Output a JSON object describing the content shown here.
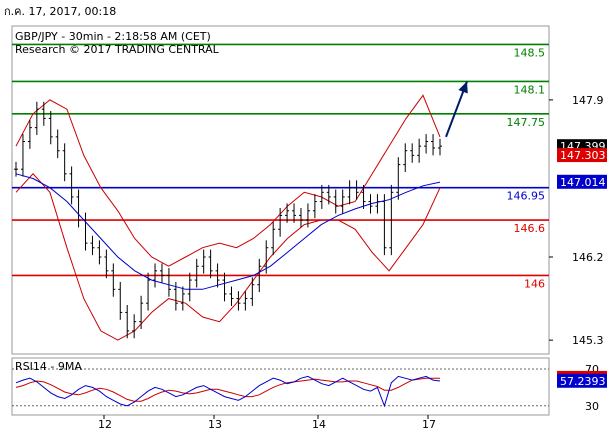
{
  "header": {
    "date": "ก.ค. 17, 2017, 00:18"
  },
  "chart_data": {
    "type": "candlestick",
    "title": "GBP/JPY - 30min - 2:18:58 AM (CET)",
    "subtitle": "Research © 2017 TRADING CENTRAL",
    "ylim": [
      145.15,
      148.7
    ],
    "y_ticks": [
      {
        "value": 147.9,
        "label": "147.9"
      },
      {
        "value": 146.2,
        "label": "146.2"
      },
      {
        "value": 145.3,
        "label": "145.3"
      }
    ],
    "x_labels": [
      "12",
      "13",
      "14",
      "17"
    ],
    "levels": [
      {
        "value": 148.5,
        "label": "148.5",
        "color": "#008000"
      },
      {
        "value": 148.1,
        "label": "148.1",
        "color": "#008000"
      },
      {
        "value": 147.75,
        "label": "147.75",
        "color": "#008000"
      },
      {
        "value": 146.95,
        "label": "146.95",
        "color": "#0000cc"
      },
      {
        "value": 146.6,
        "label": "146.6",
        "color": "#dd0000"
      },
      {
        "value": 146.0,
        "label": "146",
        "color": "#dd0000"
      }
    ],
    "price_badges": [
      {
        "value": 147.399,
        "label": "147.399",
        "bg": "#000000",
        "fg": "#ffffff"
      },
      {
        "value": 147.303,
        "label": "147.303",
        "bg": "#dd0000",
        "fg": "#ffffff"
      },
      {
        "value": 147.014,
        "label": "147.014",
        "bg": "#0000cc",
        "fg": "#ffffff"
      }
    ],
    "close_series": [
      147.15,
      147.45,
      147.6,
      147.8,
      147.7,
      147.5,
      147.35,
      147.1,
      146.85,
      146.6,
      146.35,
      146.3,
      146.2,
      146.05,
      145.85,
      145.6,
      145.4,
      145.5,
      145.7,
      145.95,
      146.05,
      146.0,
      145.85,
      145.7,
      145.8,
      145.95,
      146.1,
      146.2,
      146.05,
      145.95,
      145.8,
      145.75,
      145.7,
      145.75,
      145.9,
      146.1,
      146.3,
      146.5,
      146.65,
      146.7,
      146.65,
      146.6,
      146.7,
      146.8,
      146.9,
      146.85,
      146.75,
      146.85,
      146.95,
      146.9,
      146.8,
      146.75,
      146.8,
      146.3,
      146.9,
      147.2,
      147.35,
      147.3,
      147.4,
      147.45,
      147.38,
      147.4
    ],
    "bollinger_upper": [
      147.4,
      147.75,
      147.9,
      147.8,
      147.3,
      146.95,
      146.7,
      146.4,
      146.2,
      146.1,
      146.2,
      146.3,
      146.35,
      146.3,
      146.4,
      146.55,
      146.75,
      146.9,
      146.85,
      146.75,
      146.8,
      147.1,
      147.4,
      147.7,
      147.95,
      147.5
    ],
    "bollinger_lower": [
      146.9,
      147.1,
      146.9,
      146.3,
      145.75,
      145.4,
      145.3,
      145.4,
      145.6,
      145.75,
      145.7,
      145.55,
      145.5,
      145.7,
      145.95,
      146.2,
      146.4,
      146.55,
      146.6,
      146.6,
      146.5,
      146.25,
      146.05,
      146.3,
      146.55,
      146.95
    ],
    "ma_series": [
      147.1,
      147.05,
      146.95,
      146.8,
      146.6,
      146.4,
      146.2,
      146.05,
      145.95,
      145.9,
      145.85,
      145.85,
      145.9,
      145.95,
      146.0,
      146.1,
      146.25,
      146.4,
      146.55,
      146.65,
      146.72,
      146.78,
      146.82,
      146.9,
      146.97,
      147.01
    ],
    "arrow": {
      "from": 147.5,
      "to": 148.1
    },
    "rsi": {
      "title": "RSI14 - 9MA",
      "y_ticks": [
        {
          "value": 70,
          "label": "70"
        },
        {
          "value": 30,
          "label": "30"
        }
      ],
      "ylim": [
        20,
        82
      ],
      "badges": [
        {
          "value": 60.3553,
          "label": "60.3553",
          "bg": "#dd0000",
          "fg": "#ffffff"
        },
        {
          "value": 57.2393,
          "label": "57.2393",
          "bg": "#0000cc",
          "fg": "#ffffff"
        }
      ],
      "rsi_series": [
        55,
        58,
        60,
        56,
        50,
        44,
        40,
        38,
        42,
        48,
        52,
        50,
        46,
        40,
        36,
        32,
        30,
        34,
        40,
        46,
        50,
        48,
        44,
        40,
        42,
        46,
        50,
        52,
        48,
        44,
        40,
        38,
        36,
        40,
        46,
        52,
        56,
        60,
        58,
        54,
        56,
        60,
        62,
        58,
        54,
        52,
        56,
        60,
        56,
        52,
        48,
        46,
        50,
        30,
        55,
        62,
        60,
        58,
        60,
        62,
        58,
        57
      ],
      "ma_series": [
        50,
        52,
        55,
        57,
        56,
        53,
        49,
        45,
        43,
        42,
        44,
        47,
        49,
        48,
        45,
        41,
        37,
        35,
        35,
        38,
        42,
        45,
        47,
        46,
        44,
        43,
        44,
        46,
        48,
        48,
        46,
        44,
        42,
        40,
        40,
        42,
        46,
        50,
        53,
        55,
        56,
        57,
        58,
        59,
        58,
        57,
        56,
        56,
        57,
        57,
        55,
        53,
        51,
        47,
        47,
        50,
        54,
        58,
        59,
        60,
        60,
        60
      ],
      "band_lines": [
        70,
        30
      ]
    }
  }
}
